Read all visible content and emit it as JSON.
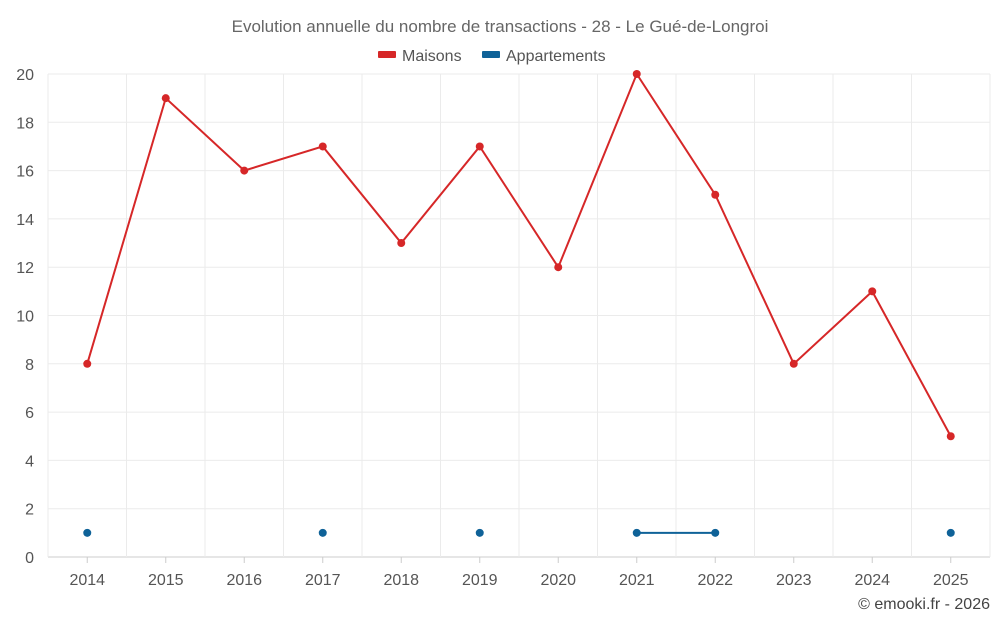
{
  "chart_data": {
    "type": "line",
    "title": "Evolution annuelle du nombre de transactions - 28 - Le Gué-de-Longroi",
    "categories": [
      "2014",
      "2015",
      "2016",
      "2017",
      "2018",
      "2019",
      "2020",
      "2021",
      "2022",
      "2023",
      "2024",
      "2025"
    ],
    "series": [
      {
        "name": "Maisons",
        "color": "#d62728",
        "values": [
          8,
          19,
          16,
          17,
          13,
          17,
          12,
          20,
          15,
          8,
          11,
          5
        ]
      },
      {
        "name": "Appartements",
        "color": "#0f6298",
        "values": [
          1,
          null,
          null,
          1,
          null,
          1,
          null,
          1,
          1,
          null,
          null,
          1
        ]
      }
    ],
    "ylim": [
      0,
      20
    ],
    "yticks": [
      0,
      2,
      4,
      6,
      8,
      10,
      12,
      14,
      16,
      18,
      20
    ],
    "grid": true,
    "legend": "top-center",
    "credit": "© emooki.fr - 2026"
  }
}
